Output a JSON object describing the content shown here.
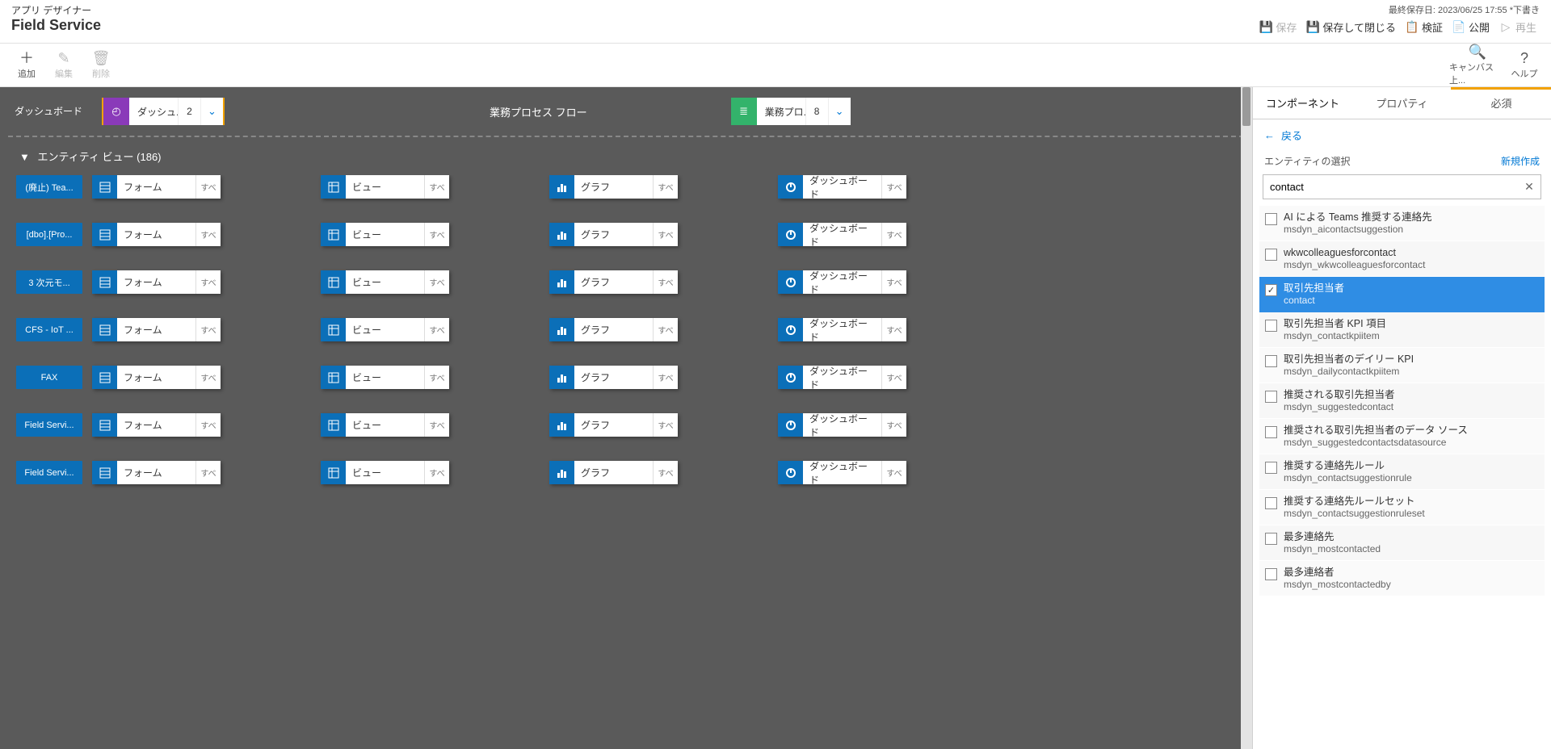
{
  "header": {
    "subtitle": "アプリ デザイナー",
    "app_name": "Field Service",
    "last_saved": "最終保存日: 2023/06/25 17:55 *下書き",
    "cmds": {
      "save": "保存",
      "save_close": "保存して閉じる",
      "validate": "検証",
      "publish": "公開",
      "play": "再生"
    }
  },
  "toolbar": {
    "add": "追加",
    "edit": "編集",
    "delete": "削除",
    "canvas": "キャンバス上...",
    "help": "ヘルプ"
  },
  "canvas": {
    "side_label": "ダッシュボード",
    "dash_tile": {
      "label": "ダッシュ...",
      "count": "2"
    },
    "bpf_label": "業務プロセス フロー",
    "bpf_tile": {
      "label": "業務プロ...",
      "count": "8"
    },
    "section_title": "エンティティ ビュー (186)",
    "assets": {
      "form": "フォーム",
      "view": "ビュー",
      "chart": "グラフ",
      "dashboard": "ダッシュボード",
      "all": "すべて"
    },
    "short_all": "すべ"
  },
  "entities": [
    "(廃止) Tea...",
    "[dbo].[Pro...",
    "3 次元モ...",
    "CFS - IoT ...",
    "FAX",
    "Field Servi...",
    "Field Servi..."
  ],
  "panel": {
    "tabs": {
      "components": "コンポーネント",
      "properties": "プロパティ",
      "required": "必須"
    },
    "back": "戻る",
    "select_entity": "エンティティの選択",
    "new": "新規作成",
    "search_value": "contact",
    "items": [
      {
        "title": "AI による Teams 推奨する連絡先",
        "name": "msdyn_aicontactsuggestion",
        "checked": false,
        "sel": false
      },
      {
        "title": "wkwcolleaguesforcontact",
        "name": "msdyn_wkwcolleaguesforcontact",
        "checked": false,
        "sel": false
      },
      {
        "title": "取引先担当者",
        "name": "contact",
        "checked": true,
        "sel": true
      },
      {
        "title": "取引先担当者 KPI 項目",
        "name": "msdyn_contactkpiitem",
        "checked": false,
        "sel": false
      },
      {
        "title": "取引先担当者のデイリー KPI",
        "name": "msdyn_dailycontactkpiitem",
        "checked": false,
        "sel": false
      },
      {
        "title": "推奨される取引先担当者",
        "name": "msdyn_suggestedcontact",
        "checked": false,
        "sel": false
      },
      {
        "title": "推奨される取引先担当者のデータ ソース",
        "name": "msdyn_suggestedcontactsdatasource",
        "checked": false,
        "sel": false
      },
      {
        "title": "推奨する連絡先ルール",
        "name": "msdyn_contactsuggestionrule",
        "checked": false,
        "sel": false
      },
      {
        "title": "推奨する連絡先ルールセット",
        "name": "msdyn_contactsuggestionruleset",
        "checked": false,
        "sel": false
      },
      {
        "title": "最多連絡先",
        "name": "msdyn_mostcontacted",
        "checked": false,
        "sel": false
      },
      {
        "title": "最多連絡者",
        "name": "msdyn_mostcontactedby",
        "checked": false,
        "sel": false
      }
    ]
  },
  "colors": {
    "blue": "#0b6fb8",
    "accent": "#f2a100",
    "purple": "#8a3ab9",
    "green": "#33b36b",
    "link": "#0078d4",
    "sel": "#2f8de4",
    "canvas_bg": "#5a5a5a"
  }
}
